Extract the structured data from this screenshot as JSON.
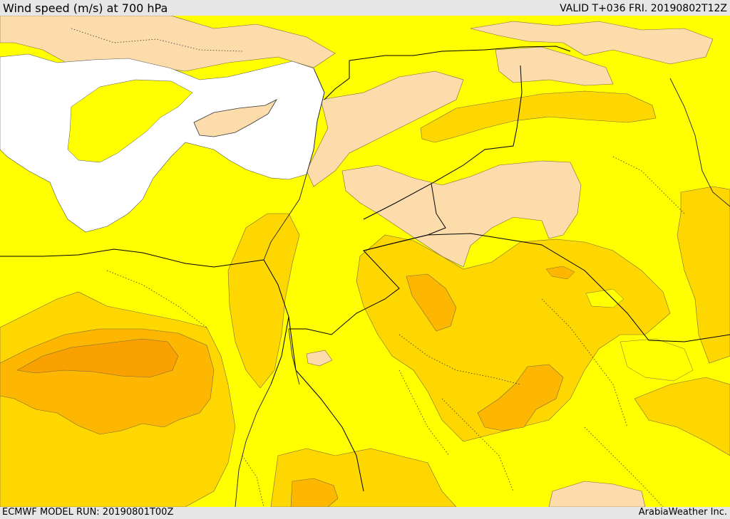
{
  "header": {
    "title": "Wind speed (m/s) at 700 hPa",
    "valid": "VALID T+036 FRI. 20190802T12Z"
  },
  "footer": {
    "model_run": "ECMWF MODEL RUN: 20190801T00Z",
    "credit": "ArabiaWeather Inc."
  },
  "map": {
    "variable": "wind speed",
    "level": "700 hPa",
    "units": "m/s",
    "palette": {
      "sea": "#ffffff",
      "light_peach": "#fcdcaa",
      "yellow": "#ffff00",
      "gold": "#ffd700",
      "amber": "#fdb700",
      "orange": "#f9a100",
      "border": "#000000"
    }
  }
}
